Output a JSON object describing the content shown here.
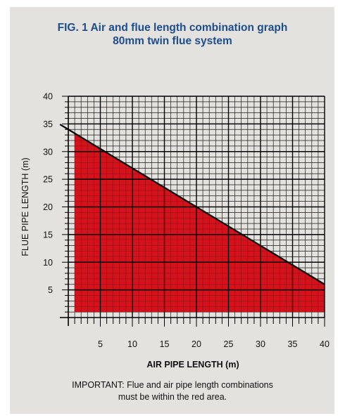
{
  "title_line1": "FIG. 1  Air and flue length combination graph",
  "title_line2": "80mm twin flue system",
  "note_line1": "IMPORTANT: Flue and air pipe length combinations",
  "note_line2": "must be within the red area.",
  "colors": {
    "title": "#1e4d8c",
    "fill": "#d3121c",
    "panel": "#e3e2de"
  },
  "chart_data": {
    "type": "area",
    "title": "Air and flue length combination graph 80mm twin flue system",
    "xlabel": "AIR PIPE LENGTH (m)",
    "ylabel": "FLUE PIPE LENGTH (m)",
    "xlim": [
      0,
      40
    ],
    "ylim": [
      0,
      40
    ],
    "x_ticks": [
      5,
      10,
      15,
      20,
      25,
      30,
      35,
      40
    ],
    "y_ticks": [
      5,
      10,
      15,
      20,
      25,
      30,
      35,
      40
    ],
    "grid": true,
    "limit_line": {
      "x": [
        0,
        40
      ],
      "y": [
        34,
        6
      ]
    },
    "allowed_area": {
      "x": [
        1,
        40
      ],
      "y": [
        33.3,
        6
      ],
      "y_min": 1
    }
  }
}
